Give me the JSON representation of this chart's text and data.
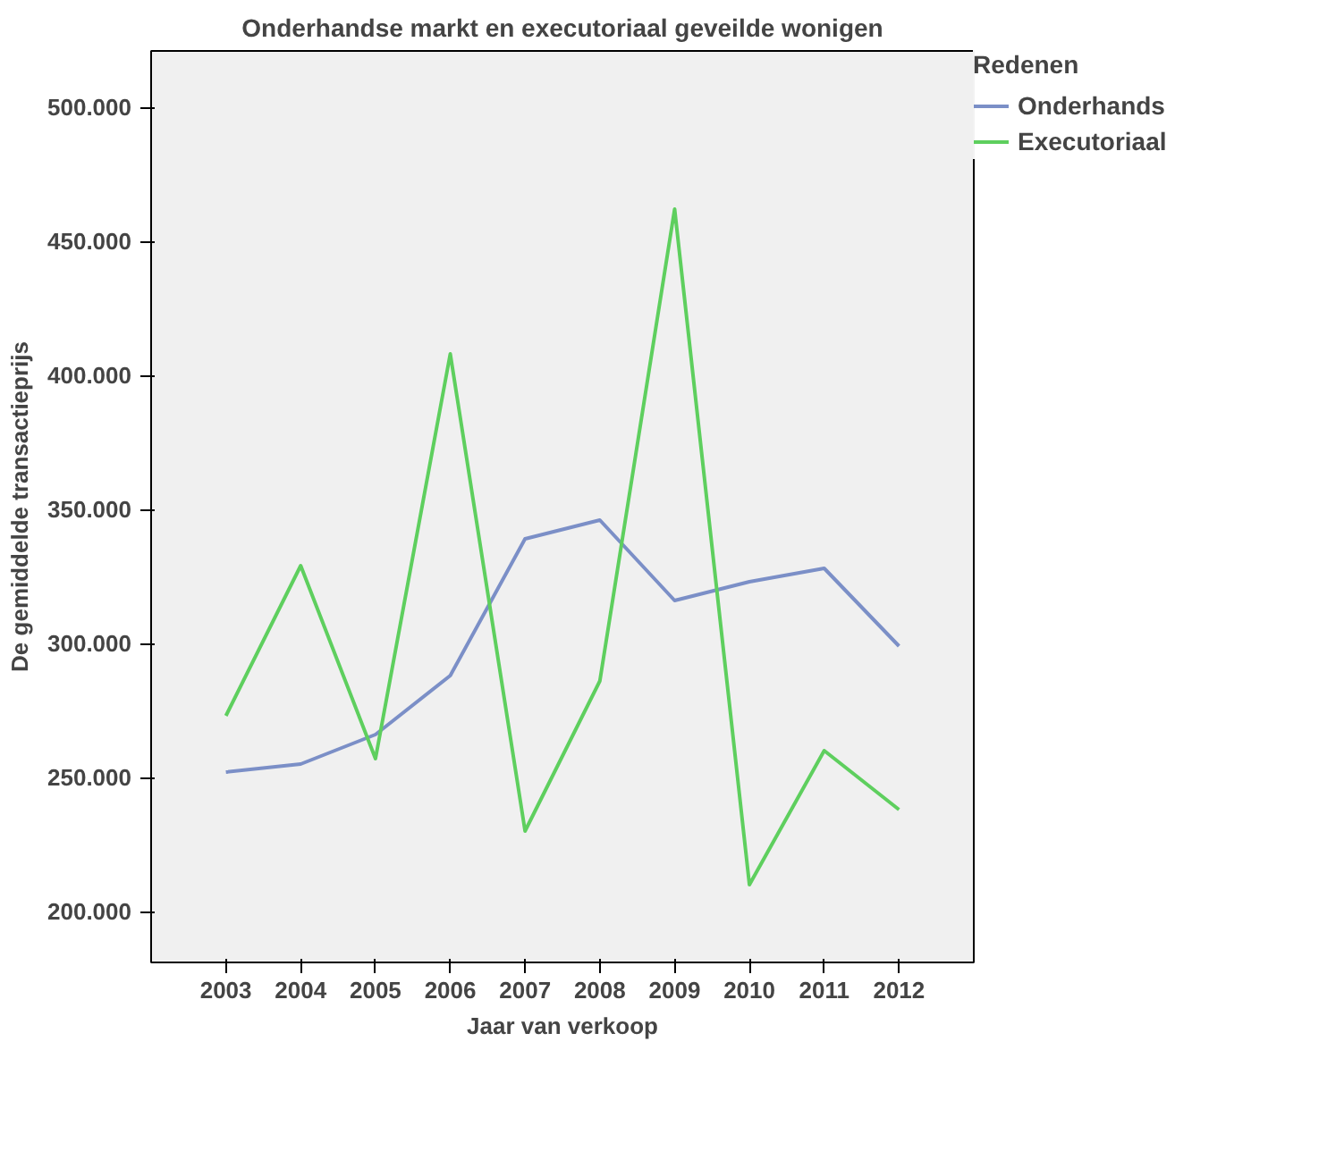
{
  "chart_data": {
    "type": "line",
    "title": "Onderhandse markt en executoriaal geveilde wonigen",
    "xlabel": "Jaar van verkoop",
    "ylabel": "De gemiddelde transactieprijs",
    "legend_title": "Redenen",
    "legend": "top right",
    "grid": false,
    "marker": "none",
    "line_style": "solid",
    "categories": [
      "2003",
      "2004",
      "2005",
      "2006",
      "2007",
      "2008",
      "2009",
      "2010",
      "2011",
      "2012"
    ],
    "series": [
      {
        "name": "Onderhands",
        "color": "#7b8fc7",
        "values": [
          252000,
          255000,
          266000,
          288000,
          339000,
          346000,
          316000,
          323000,
          328000,
          299000
        ]
      },
      {
        "name": "Executoriaal",
        "color": "#5ecf5e",
        "values": [
          273000,
          329000,
          257000,
          408000,
          230000,
          286000,
          462000,
          210000,
          260000,
          238000
        ]
      }
    ],
    "ylim": [
      181000,
      521000
    ],
    "yticks": [
      {
        "value": 200000,
        "label": "200.000"
      },
      {
        "value": 250000,
        "label": "250.000"
      },
      {
        "value": 300000,
        "label": "300.000"
      },
      {
        "value": 350000,
        "label": "350.000"
      },
      {
        "value": 400000,
        "label": "400.000"
      },
      {
        "value": 450000,
        "label": "450.000"
      },
      {
        "value": 500000,
        "label": "500.000"
      }
    ]
  }
}
